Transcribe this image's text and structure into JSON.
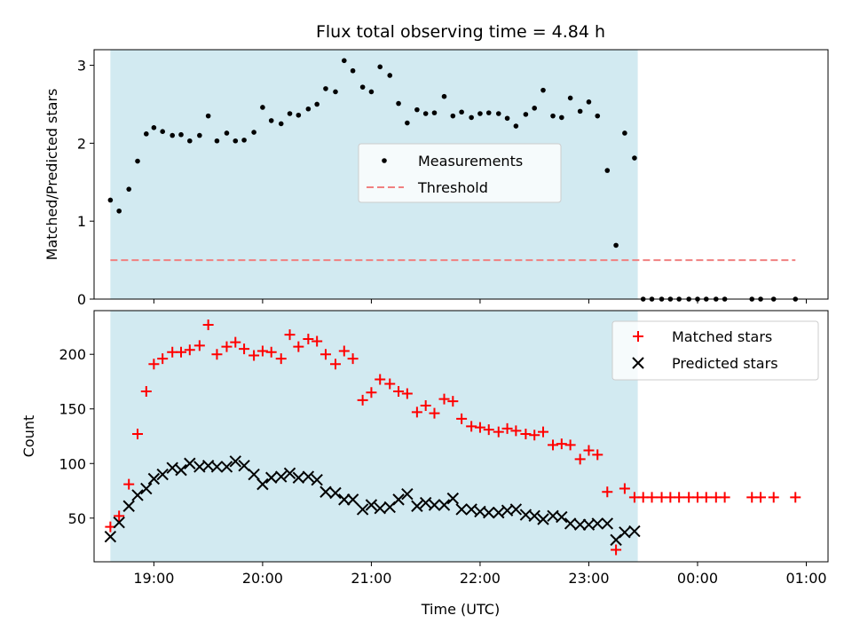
{
  "chart_data": [
    {
      "type": "scatter",
      "title": "Flux total observing time = 4.84 h",
      "xlabel": "",
      "ylabel": "Matched/Predicted stars",
      "xlim": [
        18.45,
        25.2
      ],
      "ylim": [
        0,
        3.2
      ],
      "yticks": [
        0,
        1,
        2,
        3
      ],
      "grid": false,
      "legend_position": "center",
      "shaded_span": {
        "start": 18.6,
        "end": 23.45,
        "color": "#add8e6"
      },
      "threshold": {
        "name": "Threshold",
        "value": 0.5,
        "x_range": [
          18.6,
          24.9
        ],
        "color": "#f08080"
      },
      "series": [
        {
          "name": "Measurements",
          "color": "#000000",
          "marker": "dot",
          "x": [
            18.6,
            18.68,
            18.77,
            18.85,
            18.93,
            19.0,
            19.08,
            19.17,
            19.25,
            19.33,
            19.42,
            19.5,
            19.58,
            19.67,
            19.75,
            19.83,
            19.92,
            20.0,
            20.08,
            20.17,
            20.25,
            20.33,
            20.42,
            20.5,
            20.58,
            20.67,
            20.75,
            20.83,
            20.92,
            21.0,
            21.08,
            21.17,
            21.25,
            21.33,
            21.42,
            21.5,
            21.58,
            21.67,
            21.75,
            21.83,
            21.92,
            22.0,
            22.08,
            22.17,
            22.25,
            22.33,
            22.42,
            22.5,
            22.58,
            22.67,
            22.75,
            22.83,
            22.92,
            23.0,
            23.08,
            23.17,
            23.25,
            23.33,
            23.42,
            23.5,
            23.58,
            23.67,
            23.75,
            23.83,
            23.92,
            24.0,
            24.08,
            24.17,
            24.25,
            24.5,
            24.58,
            24.7,
            24.9
          ],
          "y": [
            1.27,
            1.13,
            1.41,
            1.77,
            2.12,
            2.2,
            2.15,
            2.1,
            2.11,
            2.03,
            2.1,
            2.35,
            2.03,
            2.13,
            2.03,
            2.04,
            2.14,
            2.46,
            2.29,
            2.25,
            2.38,
            2.36,
            2.44,
            2.5,
            2.7,
            2.66,
            3.06,
            2.93,
            2.72,
            2.66,
            2.98,
            2.87,
            2.51,
            2.26,
            2.43,
            2.38,
            2.39,
            2.6,
            2.35,
            2.4,
            2.33,
            2.38,
            2.39,
            2.38,
            2.32,
            2.22,
            2.37,
            2.45,
            2.68,
            2.35,
            2.33,
            2.58,
            2.41,
            2.53,
            2.35,
            1.65,
            0.69,
            2.13,
            1.81,
            0,
            0,
            0,
            0,
            0,
            0,
            0,
            0,
            0,
            0,
            0,
            0,
            0,
            0
          ]
        }
      ],
      "xticks": [
        19,
        20,
        21,
        22,
        23,
        24,
        25
      ]
    },
    {
      "type": "scatter",
      "title": "",
      "xlabel": "Time (UTC)",
      "ylabel": "Count",
      "xlim": [
        18.45,
        25.2
      ],
      "ylim": [
        10,
        240
      ],
      "yticks": [
        50,
        100,
        150,
        200
      ],
      "grid": false,
      "legend_position": "top-right",
      "shaded_span": {
        "start": 18.6,
        "end": 23.45,
        "color": "#add8e6"
      },
      "xticks": [
        19,
        20,
        21,
        22,
        23,
        24,
        25
      ],
      "xtick_labels": [
        "19:00",
        "20:00",
        "21:00",
        "22:00",
        "23:00",
        "00:00",
        "01:00"
      ],
      "series": [
        {
          "name": "Matched stars",
          "color": "#ff0000",
          "marker": "plus",
          "x": [
            18.6,
            18.68,
            18.77,
            18.85,
            18.93,
            19.0,
            19.08,
            19.17,
            19.25,
            19.33,
            19.42,
            19.5,
            19.58,
            19.67,
            19.75,
            19.83,
            19.92,
            20.0,
            20.08,
            20.17,
            20.25,
            20.33,
            20.42,
            20.5,
            20.58,
            20.67,
            20.75,
            20.83,
            20.92,
            21.0,
            21.08,
            21.17,
            21.25,
            21.33,
            21.42,
            21.5,
            21.58,
            21.67,
            21.75,
            21.83,
            21.92,
            22.0,
            22.08,
            22.17,
            22.25,
            22.33,
            22.42,
            22.5,
            22.58,
            22.67,
            22.75,
            22.83,
            22.92,
            23.0,
            23.08,
            23.17,
            23.25,
            23.33,
            23.42,
            23.5,
            23.58,
            23.67,
            23.75,
            23.83,
            23.92,
            24.0,
            24.08,
            24.17,
            24.25,
            24.5,
            24.58,
            24.7,
            24.9
          ],
          "y": [
            42,
            52,
            81,
            127,
            166,
            191,
            196,
            202,
            202,
            204,
            208,
            227,
            200,
            207,
            211,
            205,
            199,
            203,
            202,
            196,
            218,
            207,
            214,
            212,
            200,
            191,
            203,
            196,
            158,
            165,
            177,
            173,
            166,
            164,
            147,
            153,
            146,
            159,
            157,
            141,
            134,
            133,
            131,
            129,
            132,
            130,
            127,
            126,
            129,
            117,
            118,
            117,
            104,
            112,
            108,
            74,
            21,
            77,
            69,
            69,
            69,
            69,
            69,
            69,
            69,
            69,
            69,
            69,
            69,
            69,
            69,
            69,
            69
          ]
        },
        {
          "name": "Predicted stars",
          "color": "#000000",
          "marker": "x",
          "x": [
            18.6,
            18.68,
            18.77,
            18.85,
            18.93,
            19.0,
            19.08,
            19.17,
            19.25,
            19.33,
            19.42,
            19.5,
            19.58,
            19.67,
            19.75,
            19.83,
            19.92,
            20.0,
            20.08,
            20.17,
            20.25,
            20.33,
            20.42,
            20.5,
            20.58,
            20.67,
            20.75,
            20.83,
            20.92,
            21.0,
            21.08,
            21.17,
            21.25,
            21.33,
            21.42,
            21.5,
            21.58,
            21.67,
            21.75,
            21.83,
            21.92,
            22.0,
            22.08,
            22.17,
            22.25,
            22.33,
            22.42,
            22.5,
            22.58,
            22.67,
            22.75,
            22.83,
            22.92,
            23.0,
            23.08,
            23.17,
            23.25,
            23.33,
            23.42
          ],
          "y": [
            33,
            46,
            61,
            71,
            77,
            86,
            90,
            96,
            94,
            100,
            97,
            98,
            97,
            97,
            102,
            98,
            90,
            81,
            87,
            88,
            91,
            87,
            88,
            85,
            74,
            73,
            67,
            67,
            58,
            62,
            59,
            60,
            67,
            72,
            61,
            64,
            62,
            62,
            68,
            58,
            58,
            56,
            55,
            55,
            57,
            58,
            53,
            52,
            49,
            52,
            51,
            45,
            44,
            44,
            45,
            45,
            30,
            37,
            38
          ]
        }
      ]
    }
  ]
}
